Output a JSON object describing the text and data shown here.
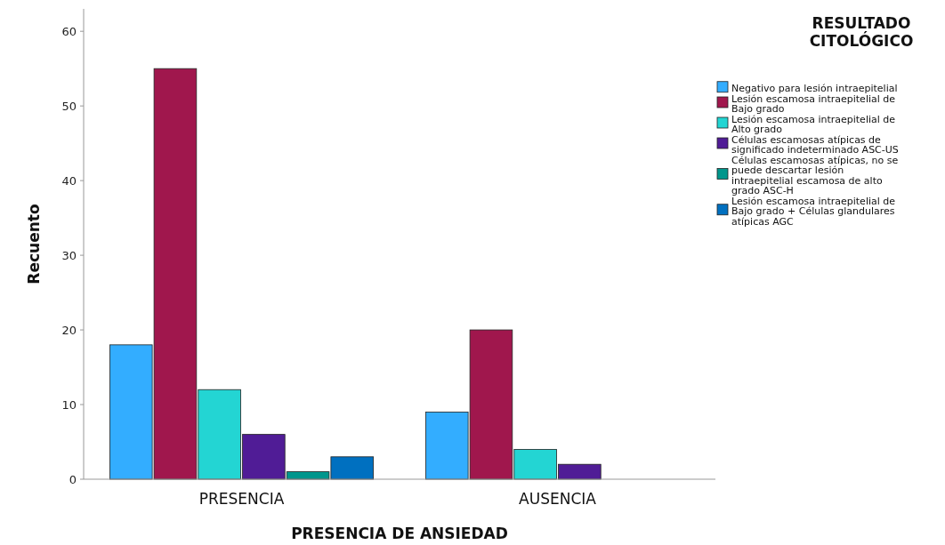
{
  "chart_data": {
    "type": "bar",
    "xlabel": "PRESENCIA DE ANSIEDAD",
    "ylabel": "Recuento",
    "legend_title": "RESULTADO CITOLÓGICO",
    "categories": [
      "PRESENCIA",
      "AUSENCIA"
    ],
    "series": [
      {
        "name": "Negativo para lesión intraepitelial",
        "color": "#33adff",
        "values": [
          18,
          9
        ]
      },
      {
        "name": "Lesión escamosa intraepitelial de Bajo grado",
        "color": "#a0174d",
        "values": [
          55,
          20
        ]
      },
      {
        "name": "Lesión escamosa intraepitelial de Alto grado",
        "color": "#23d5d3",
        "values": [
          12,
          4
        ]
      },
      {
        "name": "Células escamosas atípicas de significado indeterminado ASC-US",
        "color": "#501c96",
        "values": [
          6,
          2
        ]
      },
      {
        "name": "Células escamosas atípicas, no se puede descartar lesión intraepitelial escamosa de alto grado ASC-H",
        "color": "#00968c",
        "values": [
          1,
          0
        ]
      },
      {
        "name": "Lesión escamosa intraepitelial de Bajo grado + Células glandulares atípicas AGC",
        "color": "#0070c0",
        "values": [
          3,
          0
        ]
      }
    ],
    "ylim": [
      0,
      63
    ],
    "yticks": [
      0,
      10,
      20,
      30,
      40,
      50,
      60
    ],
    "grid": false,
    "legend": "right"
  }
}
